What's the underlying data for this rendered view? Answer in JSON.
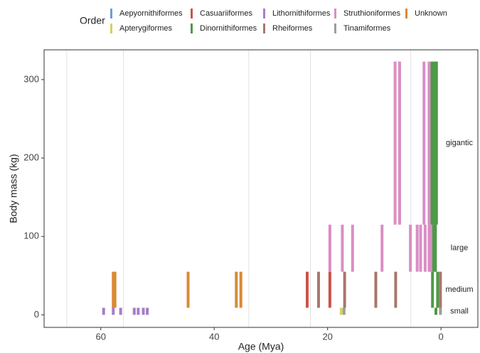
{
  "chart_data": {
    "type": "range-strip",
    "x_label": "Age (Mya)",
    "y_label": "Body mass (kg)",
    "legend_title": "Order",
    "xlim": [
      70,
      -6.5
    ],
    "xticks": [
      60,
      40,
      20,
      0
    ],
    "ylim": [
      -16,
      338
    ],
    "yticks": [
      0,
      100,
      200,
      300
    ],
    "epoch_lines": [
      66,
      56,
      33.9,
      23.03,
      5.33
    ],
    "size_classes": [
      {
        "name": "small",
        "range": [
          0,
          9
        ]
      },
      {
        "name": "medium",
        "range": [
          9,
          55
        ]
      },
      {
        "name": "large",
        "range": [
          55,
          115
        ]
      },
      {
        "name": "gigantic",
        "range": [
          115,
          323
        ]
      }
    ],
    "series": [
      {
        "name": "Aepyornithiformes",
        "color": "#6a9fd4",
        "ages": [
          1.0
        ],
        "sizes": [
          "large"
        ]
      },
      {
        "name": "Apterygiformes",
        "color": "#d4d45a",
        "ages": [
          17.6
        ],
        "sizes": [
          "small"
        ]
      },
      {
        "name": "Casuariiformes",
        "color": "#c9544b",
        "ages": [
          23.6,
          19.6
        ],
        "sizes": [
          "medium",
          "medium"
        ]
      },
      {
        "name": "Dinornithiformes",
        "color": "#4e9a45",
        "ages": [
          1.6,
          1.2,
          0.8,
          1.4,
          1.0,
          0.6,
          1.5,
          0.9
        ],
        "sizes": [
          "gigantic",
          "gigantic",
          "gigantic",
          "large",
          "large",
          "medium",
          "medium",
          "small"
        ]
      },
      {
        "name": "Lithornithiformes",
        "color": "#a57fc7",
        "ages": [
          59.5,
          57.8,
          56.5,
          54.1,
          53.4,
          52.5,
          51.8
        ],
        "sizes": [
          "small",
          "small",
          "small",
          "small",
          "small",
          "small",
          "small"
        ]
      },
      {
        "name": "Rheiformes",
        "color": "#a8776d",
        "ages": [
          21.6,
          17.0,
          11.5,
          8.0,
          0.1
        ],
        "sizes": [
          "medium",
          "medium",
          "medium",
          "medium",
          "medium"
        ]
      },
      {
        "name": "Struthioniformes",
        "color": "#d98ec4",
        "ages": [
          19.6,
          17.4,
          15.6,
          10.4,
          5.4,
          4.2,
          3.6,
          2.8,
          2.1,
          1.8,
          8.1,
          7.3,
          3.0,
          2.1
        ],
        "sizes": [
          "large",
          "large",
          "large",
          "large",
          "large",
          "large",
          "large",
          "large",
          "large",
          "large",
          "gigantic",
          "gigantic",
          "gigantic",
          "gigantic"
        ]
      },
      {
        "name": "Tinamiformes",
        "color": "#9e9e9e",
        "ages": [
          17.1,
          0.1
        ],
        "sizes": [
          "small",
          "small"
        ]
      },
      {
        "name": "Unknown",
        "color": "#d98a35",
        "ages": [
          57.8,
          57.5,
          44.6,
          36.1,
          35.3
        ],
        "sizes": [
          "medium",
          "medium",
          "medium",
          "medium",
          "medium"
        ]
      }
    ]
  }
}
